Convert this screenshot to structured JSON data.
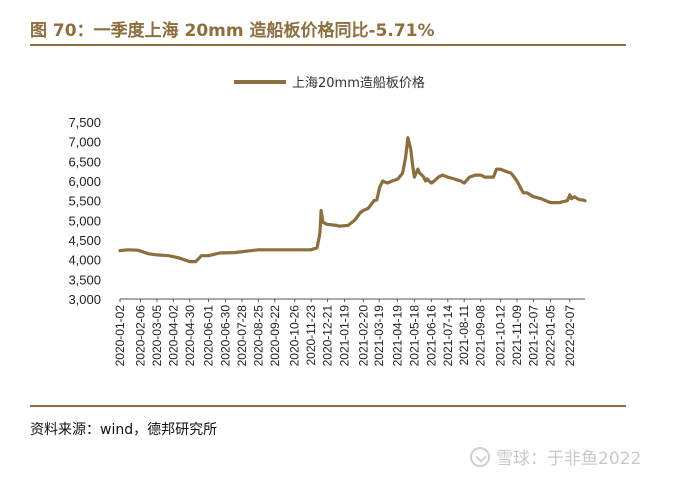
{
  "title": "图 70：一季度上海 20mm 造船板价格同比-5.71%",
  "source": "资料来源：wind，德邦研究所",
  "watermark": "雪球：于非鱼2022",
  "colors": {
    "accent": "#8c6e3f",
    "line": "#8c6e3f"
  },
  "chart_data": {
    "type": "line",
    "legend": {
      "position": "top-center"
    },
    "series": [
      {
        "name": "上海20mm造船板价格",
        "x": [
          "2020-01-02",
          "2020-01-15",
          "2020-02-01",
          "2020-02-20",
          "2020-03-05",
          "2020-03-25",
          "2020-04-10",
          "2020-04-30",
          "2020-05-10",
          "2020-05-20",
          "2020-06-01",
          "2020-06-20",
          "2020-07-15",
          "2020-08-25",
          "2020-10-26",
          "2020-11-23",
          "2020-11-28",
          "2020-12-03",
          "2020-12-07",
          "2020-12-08",
          "2020-12-10",
          "2020-12-13",
          "2020-12-20",
          "2021-01-05",
          "2021-01-10",
          "2021-01-25",
          "2021-02-05",
          "2021-02-15",
          "2021-02-20",
          "2021-02-28",
          "2021-03-05",
          "2021-03-10",
          "2021-03-15",
          "2021-03-20",
          "2021-03-25",
          "2021-04-02",
          "2021-04-10",
          "2021-04-20",
          "2021-04-28",
          "2021-05-03",
          "2021-05-07",
          "2021-05-12",
          "2021-05-15",
          "2021-05-18",
          "2021-05-21",
          "2021-05-24",
          "2021-05-27",
          "2021-05-31",
          "2021-06-03",
          "2021-06-06",
          "2021-06-09",
          "2021-06-12",
          "2021-06-16",
          "2021-06-21",
          "2021-06-28",
          "2021-07-05",
          "2021-07-14",
          "2021-07-25",
          "2021-08-05",
          "2021-08-11",
          "2021-08-20",
          "2021-08-30",
          "2021-09-08",
          "2021-09-15",
          "2021-09-25",
          "2021-09-30",
          "2021-10-05",
          "2021-10-12",
          "2021-10-20",
          "2021-10-30",
          "2021-11-09",
          "2021-11-16",
          "2021-11-20",
          "2021-11-26",
          "2021-12-07",
          "2021-12-20",
          "2022-01-05",
          "2022-01-20",
          "2022-02-03",
          "2022-02-07",
          "2022-02-10",
          "2022-02-15",
          "2022-02-20",
          "2022-02-25",
          "2022-03-01",
          "2022-03-05"
        ],
        "values": [
          4230,
          4250,
          4240,
          4150,
          4120,
          4100,
          4050,
          3950,
          3950,
          4100,
          4100,
          4170,
          4180,
          4250,
          4250,
          4250,
          4280,
          4300,
          4600,
          4700,
          5250,
          4950,
          4900,
          4870,
          4850,
          4870,
          5000,
          5200,
          5250,
          5300,
          5400,
          5500,
          5520,
          5850,
          6000,
          5950,
          6000,
          6050,
          6200,
          6600,
          7100,
          6800,
          6400,
          6100,
          6200,
          6300,
          6200,
          6150,
          6100,
          6000,
          6050,
          6000,
          5950,
          6000,
          6100,
          6150,
          6100,
          6050,
          6000,
          5950,
          6100,
          6150,
          6150,
          6100,
          6100,
          6100,
          6300,
          6300,
          6250,
          6200,
          6000,
          5800,
          5700,
          5700,
          5600,
          5550,
          5450,
          5450,
          5500,
          5650,
          5550,
          5600,
          5550,
          5520,
          5520,
          5500
        ]
      }
    ],
    "x_tick_labels": [
      "2020-01-02",
      "2020-02-06",
      "2020-03-05",
      "2020-04-02",
      "2020-04-30",
      "2020-06-01",
      "2020-06-30",
      "2020-07-28",
      "2020-08-25",
      "2020-09-22",
      "2020-10-26",
      "2020-11-23",
      "2020-12-21",
      "2021-01-19",
      "2021-02-20",
      "2021-03-19",
      "2021-04-19",
      "2021-05-18",
      "2021-06-16",
      "2021-07-14",
      "2021-08-11",
      "2021-09-08",
      "2021-10-12",
      "2021-11-09",
      "2021-12-07",
      "2022-01-05",
      "2022-02-07"
    ],
    "y_ticks": [
      3000,
      3500,
      4000,
      4500,
      5000,
      5500,
      6000,
      6500,
      7000,
      7500
    ],
    "y_tick_labels": [
      "3,000",
      "3,500",
      "4,000",
      "4,500",
      "5,000",
      "5,500",
      "6,000",
      "6,500",
      "7,000",
      "7,500"
    ],
    "ylim": [
      3000,
      7500
    ],
    "grid": false
  }
}
